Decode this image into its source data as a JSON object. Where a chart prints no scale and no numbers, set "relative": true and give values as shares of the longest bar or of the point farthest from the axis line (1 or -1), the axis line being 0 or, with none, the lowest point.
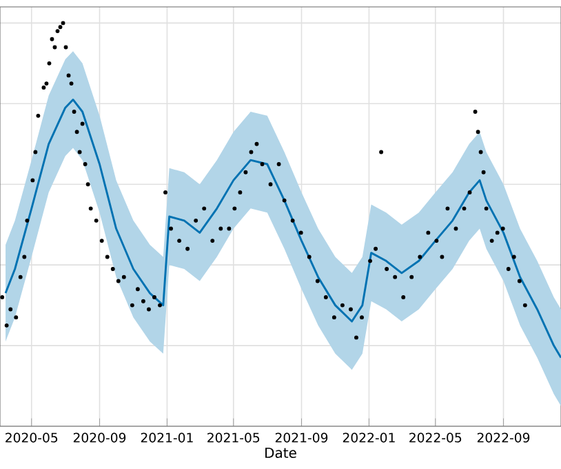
{
  "chart_data": {
    "type": "line",
    "xlabel": "Date",
    "relative": true,
    "grid": true,
    "xlim": [
      "2020-03-05",
      "2022-12-14"
    ],
    "xticks": [
      "2020-05",
      "2020-09",
      "2021-01",
      "2021-05",
      "2021-09",
      "2022-01",
      "2022-05",
      "2022-09"
    ],
    "series": [
      {
        "color": "#0072b2",
        "marker": "none",
        "line_style": "solid",
        "x": [
          "2020-03-15",
          "2020-04-01",
          "2020-05-01",
          "2020-06-01",
          "2020-07-01",
          "2020-07-15",
          "2020-08-01",
          "2020-09-01",
          "2020-10-01",
          "2020-11-01",
          "2020-12-01",
          "2020-12-25",
          "2021-01-05",
          "2021-02-01",
          "2021-03-01",
          "2021-04-01",
          "2021-05-01",
          "2021-06-01",
          "2021-07-01",
          "2021-08-01",
          "2021-09-01",
          "2021-10-01",
          "2021-11-01",
          "2021-12-01",
          "2021-12-20",
          "2022-01-05",
          "2022-02-01",
          "2022-03-01",
          "2022-04-01",
          "2022-05-01",
          "2022-06-01",
          "2022-07-01",
          "2022-07-20",
          "2022-08-01",
          "2022-09-01",
          "2022-10-01",
          "2022-11-01",
          "2022-12-01",
          "2022-12-14"
        ],
        "values": [
          0.33,
          0.39,
          0.54,
          0.7,
          0.79,
          0.81,
          0.78,
          0.65,
          0.49,
          0.39,
          0.33,
          0.3,
          0.52,
          0.51,
          0.48,
          0.54,
          0.61,
          0.66,
          0.65,
          0.56,
          0.46,
          0.37,
          0.3,
          0.26,
          0.3,
          0.43,
          0.41,
          0.38,
          0.41,
          0.46,
          0.51,
          0.58,
          0.61,
          0.56,
          0.48,
          0.37,
          0.29,
          0.2,
          0.17
        ],
        "lower": [
          0.21,
          0.27,
          0.42,
          0.58,
          0.67,
          0.69,
          0.66,
          0.53,
          0.37,
          0.27,
          0.21,
          0.18,
          0.4,
          0.39,
          0.36,
          0.42,
          0.49,
          0.54,
          0.53,
          0.44,
          0.34,
          0.25,
          0.18,
          0.14,
          0.18,
          0.31,
          0.29,
          0.26,
          0.29,
          0.34,
          0.39,
          0.46,
          0.49,
          0.44,
          0.36,
          0.25,
          0.17,
          0.08,
          0.05
        ],
        "upper": [
          0.45,
          0.51,
          0.66,
          0.82,
          0.91,
          0.93,
          0.9,
          0.77,
          0.61,
          0.51,
          0.45,
          0.42,
          0.64,
          0.63,
          0.6,
          0.66,
          0.73,
          0.78,
          0.77,
          0.68,
          0.58,
          0.49,
          0.42,
          0.38,
          0.42,
          0.55,
          0.53,
          0.5,
          0.53,
          0.58,
          0.63,
          0.7,
          0.73,
          0.68,
          0.6,
          0.49,
          0.41,
          0.32,
          0.29
        ]
      },
      {
        "type": "scatter",
        "color": "#000000",
        "marker": "circle",
        "x": [
          "2020-03-09",
          "2020-03-17",
          "2020-03-24",
          "2020-04-03",
          "2020-04-11",
          "2020-04-18",
          "2020-04-23",
          "2020-05-03",
          "2020-05-08",
          "2020-05-13",
          "2020-05-23",
          "2020-05-28",
          "2020-06-02",
          "2020-06-07",
          "2020-06-12",
          "2020-06-17",
          "2020-06-22",
          "2020-06-27",
          "2020-07-02",
          "2020-07-07",
          "2020-07-12",
          "2020-07-17",
          "2020-07-22",
          "2020-07-27",
          "2020-08-01",
          "2020-08-06",
          "2020-08-11",
          "2020-08-16",
          "2020-08-26",
          "2020-09-05",
          "2020-09-15",
          "2020-09-25",
          "2020-10-05",
          "2020-10-15",
          "2020-10-30",
          "2020-11-09",
          "2020-11-19",
          "2020-11-29",
          "2020-12-09",
          "2020-12-19",
          "2020-12-29",
          "2021-01-08",
          "2021-01-23",
          "2021-02-07",
          "2021-02-22",
          "2021-03-09",
          "2021-03-24",
          "2021-04-08",
          "2021-04-23",
          "2021-05-03",
          "2021-05-13",
          "2021-05-23",
          "2021-06-02",
          "2021-06-12",
          "2021-06-22",
          "2021-07-07",
          "2021-07-22",
          "2021-08-01",
          "2021-08-16",
          "2021-08-31",
          "2021-09-15",
          "2021-09-30",
          "2021-10-15",
          "2021-10-30",
          "2021-11-14",
          "2021-11-29",
          "2021-12-09",
          "2021-12-19",
          "2022-01-03",
          "2022-01-13",
          "2022-01-23",
          "2022-02-02",
          "2022-02-17",
          "2022-03-04",
          "2022-03-19",
          "2022-04-03",
          "2022-04-18",
          "2022-05-03",
          "2022-05-13",
          "2022-05-23",
          "2022-06-07",
          "2022-06-22",
          "2022-07-02",
          "2022-07-12",
          "2022-07-17",
          "2022-07-22",
          "2022-07-27",
          "2022-08-01",
          "2022-08-11",
          "2022-08-21",
          "2022-08-31",
          "2022-09-10",
          "2022-09-20",
          "2022-09-30",
          "2022-10-10"
        ],
        "values": [
          0.32,
          0.25,
          0.29,
          0.27,
          0.37,
          0.42,
          0.51,
          0.61,
          0.68,
          0.77,
          0.84,
          0.85,
          0.9,
          0.96,
          0.94,
          0.98,
          0.99,
          1.0,
          0.94,
          0.87,
          0.85,
          0.78,
          0.73,
          0.68,
          0.75,
          0.65,
          0.6,
          0.54,
          0.51,
          0.46,
          0.42,
          0.39,
          0.36,
          0.37,
          0.3,
          0.34,
          0.31,
          0.29,
          0.32,
          0.3,
          0.58,
          0.49,
          0.46,
          0.44,
          0.51,
          0.54,
          0.46,
          0.49,
          0.49,
          0.54,
          0.58,
          0.63,
          0.68,
          0.7,
          0.65,
          0.6,
          0.65,
          0.56,
          0.51,
          0.48,
          0.42,
          0.36,
          0.32,
          0.27,
          0.3,
          0.29,
          0.22,
          0.27,
          0.41,
          0.44,
          0.68,
          0.39,
          0.37,
          0.32,
          0.37,
          0.42,
          0.48,
          0.46,
          0.42,
          0.54,
          0.49,
          0.54,
          0.58,
          0.78,
          0.73,
          0.68,
          0.63,
          0.54,
          0.46,
          0.48,
          0.49,
          0.39,
          0.42,
          0.36,
          0.3
        ]
      }
    ]
  }
}
